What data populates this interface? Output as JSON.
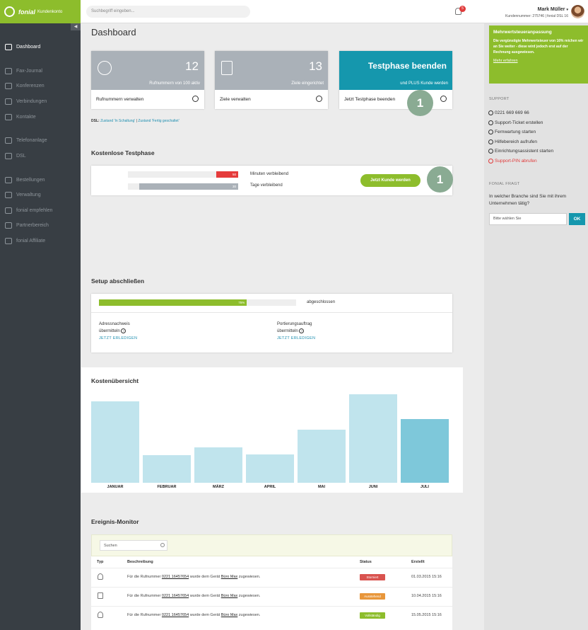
{
  "header": {
    "logo_brand": "fonial",
    "logo_product": "Kundenkonto",
    "search_placeholder": "Suchbegriff eingeben...",
    "notifications_count": "5",
    "user_name": "Mark Müller",
    "user_number": "Kundennummer: 275746 | fonial DSL 16"
  },
  "sidebar": {
    "collapse_glyph": "◀",
    "items": [
      {
        "label": "Dashboard",
        "icon": "dashboard-icon"
      },
      {
        "label": "Fax-Journal",
        "icon": "fax-icon"
      },
      {
        "label": "Konferenzen",
        "icon": "conference-icon"
      },
      {
        "label": "Verbindungen",
        "icon": "connections-icon"
      },
      {
        "label": "Kontakte",
        "icon": "contacts-icon"
      },
      {
        "label": "Telefonanlage",
        "icon": "phone-system-icon"
      },
      {
        "label": "DSL",
        "icon": "wifi-icon"
      },
      {
        "label": "Bestellungen",
        "icon": "cart-icon"
      },
      {
        "label": "Verwaltung",
        "icon": "settings-icon"
      },
      {
        "label": "fonial empfehlen",
        "icon": "recommend-icon"
      },
      {
        "label": "Partnerbereich",
        "icon": "partner-icon"
      },
      {
        "label": "fonial Affiliate",
        "icon": "affiliate-icon"
      }
    ]
  },
  "main": {
    "title": "Dashboard",
    "tiles": [
      {
        "number": "12",
        "sub": "Rufnummern von 100 aktiv",
        "footer": "Rufnummern verwalten",
        "icon": "phone-icon"
      },
      {
        "number": "13",
        "sub": "Ziele eingerichtet",
        "footer": "Ziele verwalten",
        "icon": "desk-phone-icon"
      },
      {
        "title": "Testphase beenden",
        "sub": "und PLUS Kunde werden",
        "footer": "Jetzt Testphase beenden"
      }
    ],
    "step_badge": "1",
    "dsl_line": {
      "prefix": "DSL:",
      "link1": "Zustand 'In Schaltung'",
      "sep": "|",
      "link2": "Zustand 'Fertig geschaltet'"
    },
    "trial": {
      "title": "Kostenlose Testphase",
      "bars": [
        {
          "value": "50",
          "label": "Minuten verbleibend",
          "fraction": 0.2,
          "color": "#e53b3b"
        },
        {
          "value": "30",
          "label": "Tage verbleibend",
          "fraction": 0.9,
          "color": "#aab1b8"
        }
      ],
      "button": "Jetzt Kunde werden"
    },
    "setup": {
      "title": "Setup abschließen",
      "progress_label": "75%",
      "progress_fraction": 0.75,
      "progress_text": "abgeschlossen",
      "items": [
        {
          "line1": "Adressnachweis",
          "line2": "übermitteln",
          "info": "?",
          "action": "JETZT ERLEDIGEN"
        },
        {
          "line1": "Portierungsauftrag",
          "line2": "übermitteln",
          "info": "?",
          "action": "JETZT ERLEDIGEN"
        }
      ]
    },
    "costs": {
      "title": "Kostenübersicht"
    },
    "events": {
      "title": "Ereignis-Monitor",
      "search_placeholder": "Suchen",
      "columns": [
        "Typ",
        "Beschreibung",
        "Status",
        "Erstellt"
      ],
      "rows": [
        {
          "pre": "Für die Rufnummer",
          "number": "0221 16457654",
          "mid": "wurde dem Gerät",
          "device": "Büro Max",
          "post": "zugewiesen.",
          "status": "Storniert",
          "status_color": "#d9534f",
          "date": "01.03.2015 15:16",
          "icon": "user-icon"
        },
        {
          "pre": "Für die Rufnummer",
          "number": "0221 16457654",
          "mid": "wurde dem Gerät",
          "device": "Büro Max",
          "post": "zugewiesen.",
          "status": "Ausstehend",
          "status_color": "#e8963a",
          "date": "10.04.2015 15:16",
          "icon": "document-icon"
        },
        {
          "pre": "Für die Rufnummer",
          "number": "0221 16457654",
          "mid": "wurde dem Gerät",
          "device": "Büro Max",
          "post": "zugewiesen.",
          "status": "Vollständig",
          "status_color": "#8dbd2c",
          "date": "15.05.2015 15:16",
          "icon": "user-icon"
        }
      ]
    }
  },
  "chart_data": {
    "type": "bar",
    "title": "Kostenübersicht",
    "categories": [
      "JANUAR",
      "FEBRUAR",
      "MÄRZ",
      "APRIL",
      "MAI",
      "JUNI",
      "JULI"
    ],
    "values": [
      115,
      39,
      50,
      40,
      75,
      125,
      90
    ],
    "highlight_index": 6,
    "color": "#c0e4ed",
    "highlight_color": "#7ec8da",
    "ylim": [
      0,
      125
    ],
    "grid": false
  },
  "rightcol": {
    "notice": {
      "title": "Mehrwertsteueranpassung",
      "body": "Die vergünstigte Mehrwertsteuer von 16% reichen wir an Sie weiter - diese wird jedoch erst auf der Rechnung ausgewiesen.",
      "link": "Mehr erfahren"
    },
    "support": {
      "heading": "SUPPORT",
      "items": [
        {
          "label": "0221 669 669 66",
          "icon": "phone-icon"
        },
        {
          "label": "Support-Ticket erstellen",
          "icon": "ticket-icon"
        },
        {
          "label": "Fernwartung starten",
          "icon": "remote-icon"
        },
        {
          "label": "Hilfebereich aufrufen",
          "icon": "help-icon"
        },
        {
          "label": "Einrichtungsassistent starten",
          "icon": "wizard-icon"
        },
        {
          "label": "Support-PIN abrufen",
          "icon": "shield-icon"
        }
      ]
    },
    "ask": {
      "heading": "FONIAL FRAGT",
      "question": "In welcher Branche sind Sie mit ihrem Unternehmen tätig?",
      "select_placeholder": "Bitte wählen Sie",
      "ok": "OK"
    }
  }
}
